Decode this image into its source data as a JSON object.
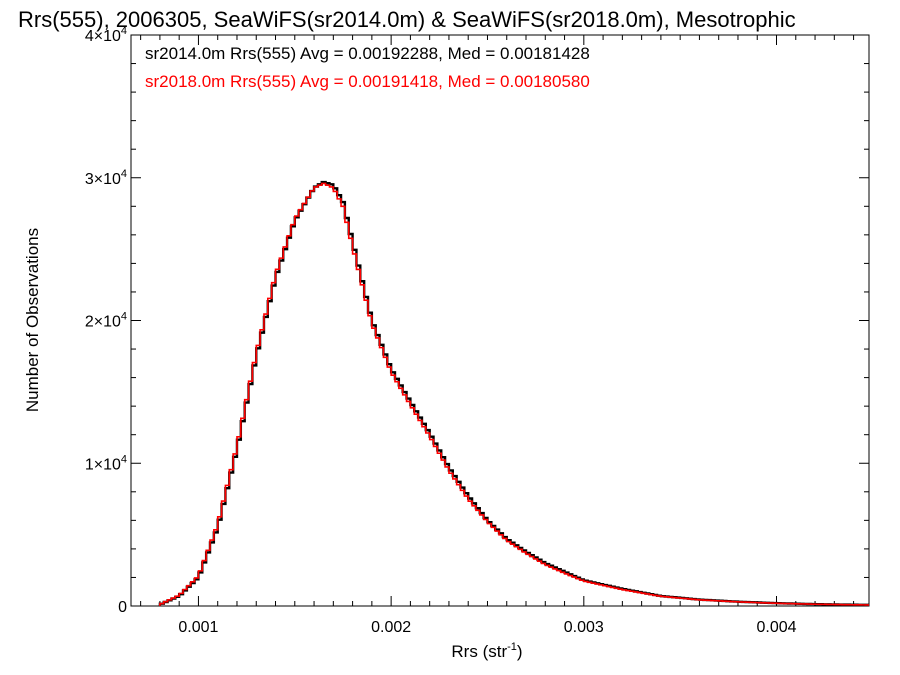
{
  "chart_data": {
    "type": "histogram",
    "title": "Rrs(555), 2006305, SeaWiFS(sr2014.0m) & SeaWiFS(sr2018.0m), Mesotrophic",
    "xlabel_main": "Rrs (str",
    "xlabel_sup": "-1",
    "xlabel_end": ")",
    "ylabel": "Number of Observations",
    "xlim": [
      0.00065,
      0.00448
    ],
    "ylim": [
      0,
      40000
    ],
    "x_ticks": [
      {
        "value": 0.001,
        "label": "0.001"
      },
      {
        "value": 0.002,
        "label": "0.002"
      },
      {
        "value": 0.003,
        "label": "0.003"
      },
      {
        "value": 0.004,
        "label": "0.004"
      }
    ],
    "y_ticks": [
      {
        "value": 0,
        "label": "0",
        "sup": ""
      },
      {
        "value": 10000,
        "label": "1×10",
        "sup": "4"
      },
      {
        "value": 20000,
        "label": "2×10",
        "sup": "4"
      },
      {
        "value": 30000,
        "label": "3×10",
        "sup": "4"
      },
      {
        "value": 40000,
        "label": "4×10",
        "sup": "4"
      }
    ],
    "bin_width": 2e-05,
    "grid": false,
    "series": [
      {
        "name": "sr2014.0m Rrs(555) Avg = 0.00192288, Med = 0.00181428",
        "color": "#000000",
        "x": [
          0.0008,
          0.0009,
          0.001,
          0.0011,
          0.0012,
          0.0013,
          0.0014,
          0.0015,
          0.0016,
          0.00165,
          0.0017,
          0.00175,
          0.0018,
          0.0019,
          0.002,
          0.0021,
          0.0022,
          0.0023,
          0.0024,
          0.0025,
          0.0026,
          0.0027,
          0.0028,
          0.0029,
          0.003,
          0.0032,
          0.0034,
          0.0036,
          0.0038,
          0.004,
          0.0042,
          0.0044,
          0.00448
        ],
        "y": [
          100,
          700,
          2000,
          5500,
          11000,
          17500,
          23000,
          27000,
          29300,
          29700,
          29500,
          28300,
          25500,
          20000,
          16600,
          14300,
          12100,
          9700,
          7700,
          6000,
          4700,
          3800,
          3000,
          2400,
          1800,
          1200,
          700,
          450,
          300,
          200,
          130,
          90,
          80
        ]
      },
      {
        "name": "sr2018.0m Rrs(555) Avg = 0.00191418, Med = 0.00180580",
        "color": "#ff0000",
        "x": [
          0.0008,
          0.0009,
          0.001,
          0.0011,
          0.0012,
          0.0013,
          0.0014,
          0.0015,
          0.0016,
          0.00165,
          0.0017,
          0.00175,
          0.0018,
          0.0019,
          0.002,
          0.0021,
          0.0022,
          0.0023,
          0.0024,
          0.0025,
          0.0026,
          0.0027,
          0.0028,
          0.0029,
          0.003,
          0.0032,
          0.0034,
          0.0036,
          0.0038,
          0.004,
          0.0042,
          0.0044,
          0.00448
        ],
        "y": [
          110,
          750,
          2100,
          5700,
          11200,
          17700,
          23200,
          27100,
          29300,
          29600,
          29300,
          28000,
          25200,
          19800,
          16400,
          14100,
          11900,
          9500,
          7500,
          5900,
          4600,
          3700,
          2900,
          2300,
          1750,
          1150,
          680,
          430,
          290,
          190,
          125,
          85,
          75
        ]
      }
    ]
  }
}
